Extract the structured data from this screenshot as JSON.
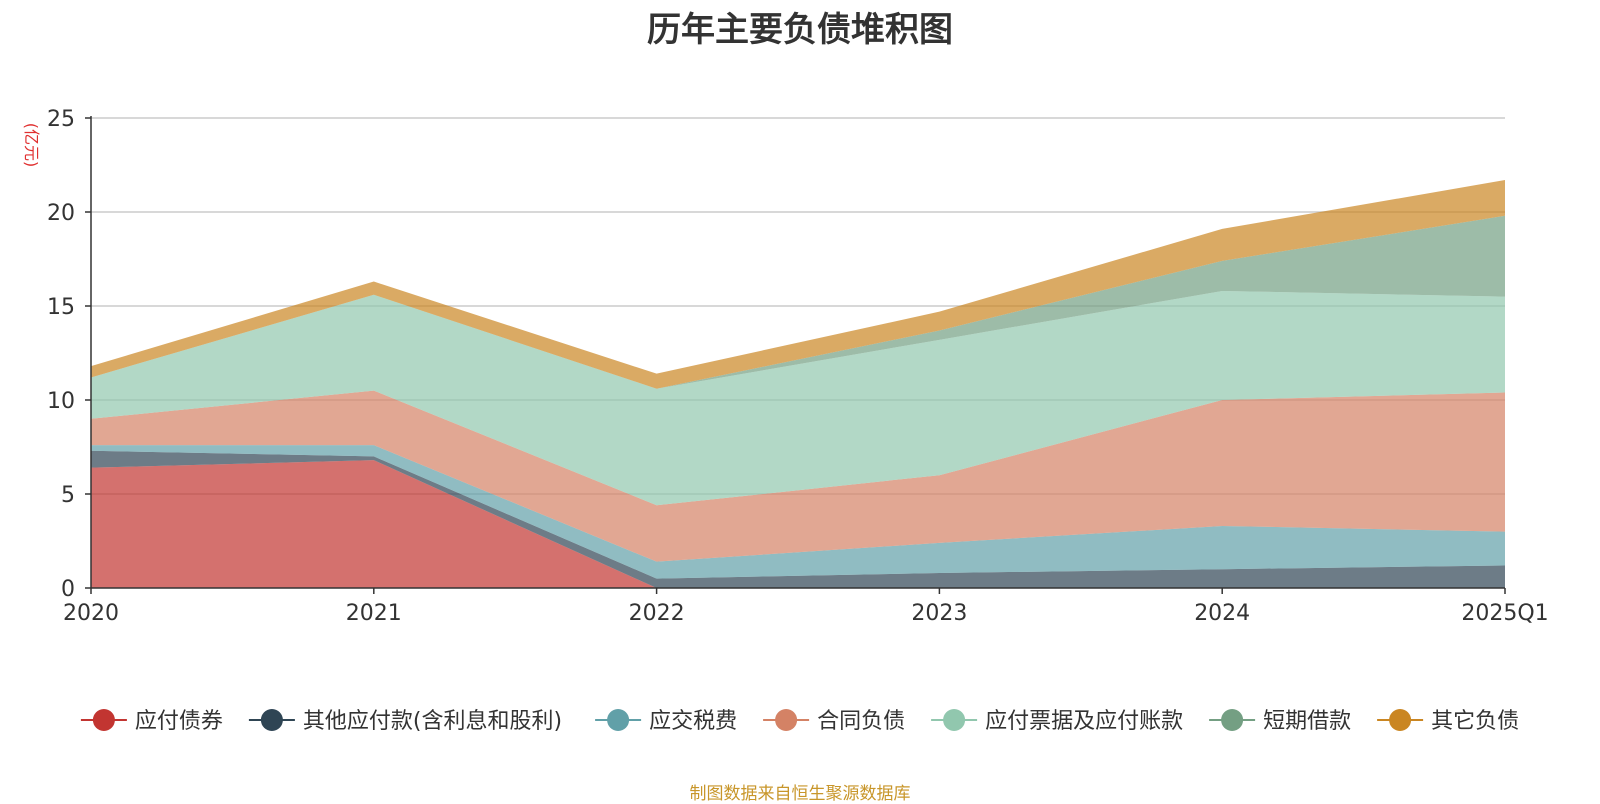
{
  "chart_data": {
    "type": "area",
    "stacked": true,
    "title": "历年主要负债堆积图",
    "unit_label": "(亿元)",
    "categories": [
      "2020",
      "2021",
      "2022",
      "2023",
      "2024",
      "2025Q1"
    ],
    "ylim": [
      0,
      25
    ],
    "yticks": [
      0,
      5,
      10,
      15,
      20,
      25
    ],
    "grid": true,
    "legend_position": "bottom",
    "series": [
      {
        "name": "应付债券",
        "color": "#c23531",
        "values": [
          6.4,
          6.8,
          0,
          0,
          0,
          0
        ]
      },
      {
        "name": "其他应付款(含利息和股利)",
        "color": "#2f4554",
        "values": [
          0.9,
          0.2,
          0.5,
          0.8,
          1.0,
          1.2
        ]
      },
      {
        "name": "应交税费",
        "color": "#61a0a8",
        "values": [
          0.3,
          0.6,
          0.9,
          1.6,
          2.3,
          1.8
        ]
      },
      {
        "name": "合同负债",
        "color": "#d48265",
        "values": [
          1.4,
          2.9,
          3.0,
          3.6,
          6.7,
          7.4
        ]
      },
      {
        "name": "应付票据及应付账款",
        "color": "#91c7ae",
        "values": [
          2.2,
          5.1,
          6.2,
          7.2,
          5.8,
          5.1
        ]
      },
      {
        "name": "短期借款",
        "color": "#749f83",
        "values": [
          0,
          0,
          0,
          0.5,
          1.6,
          4.3
        ]
      },
      {
        "name": "其它负债",
        "color": "#ca8622",
        "values": [
          0.6,
          0.7,
          0.8,
          1.0,
          1.7,
          1.9
        ]
      }
    ]
  },
  "footer": {
    "source": "制图数据来自恒生聚源数据库"
  }
}
